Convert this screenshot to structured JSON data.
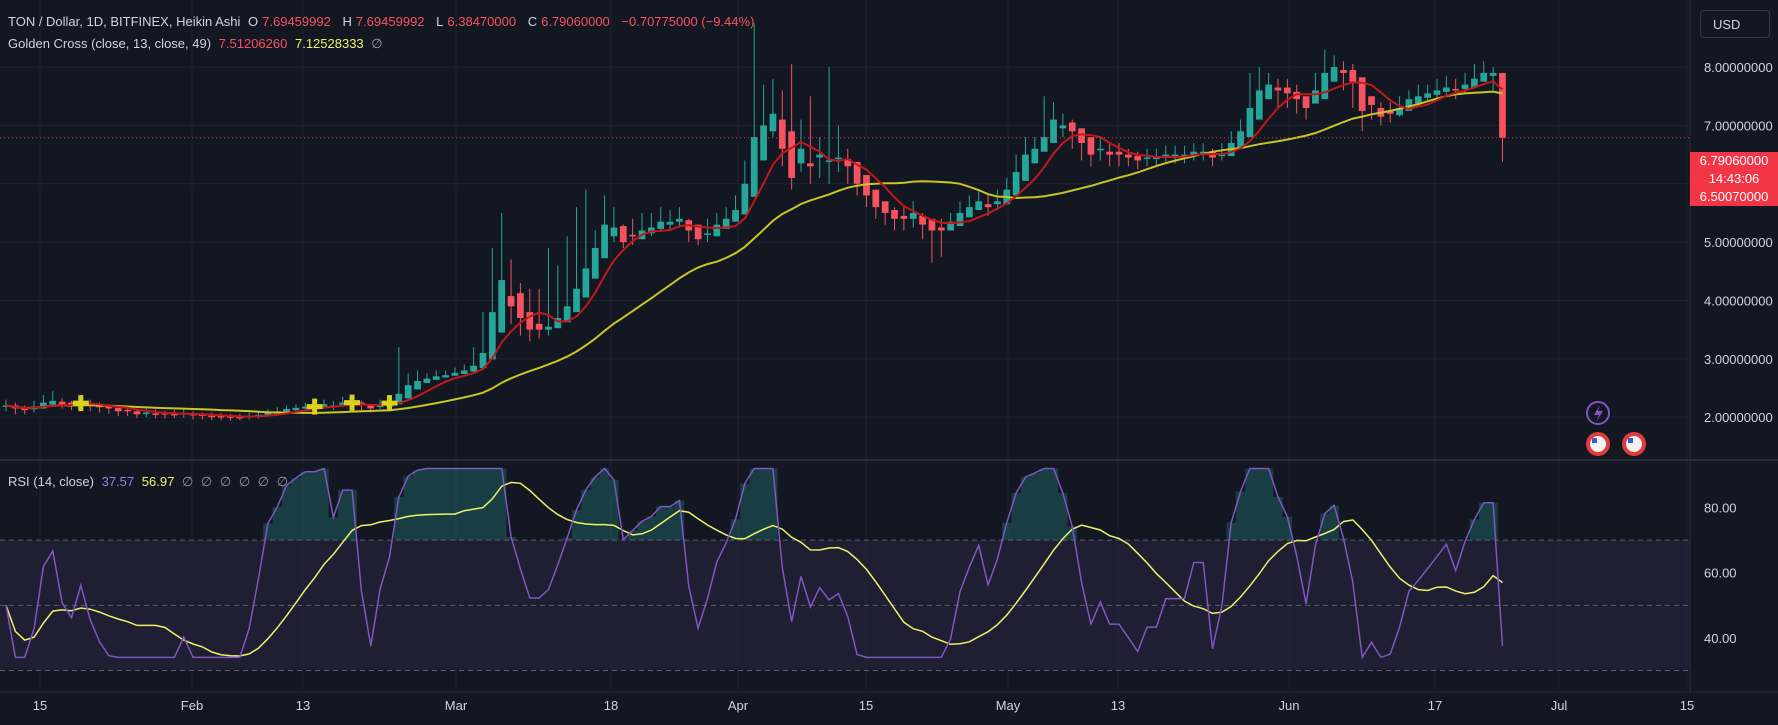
{
  "legend": {
    "symbol": "TON / Dollar, 1D, BITFINEX, Heikin Ashi",
    "o_label": "O",
    "o_value": "7.69459992",
    "h_label": "H",
    "h_value": "7.69459992",
    "l_label": "L",
    "l_value": "6.38470000",
    "c_label": "C",
    "c_value": "6.79060000",
    "change": "−0.70775000 (−9.44%)",
    "indicator": "Golden Cross (close, 13, close, 49)",
    "fast_value": "7.51206260",
    "slow_value": "7.12528333",
    "hidden_glyph": "∅",
    "rsi_label": "RSI (14, close)",
    "rsi_value": "37.57",
    "rsi_ma_value": "56.97",
    "rsi_hidden": [
      "∅",
      "∅",
      "∅",
      "∅",
      "∅",
      "∅"
    ]
  },
  "currency": "USD",
  "price_tag": {
    "current": "6.79060000",
    "countdown": "14:43:06",
    "low": "6.50070000"
  },
  "colors": {
    "background": "#131722",
    "up": "#26a69a",
    "down": "#f7525f",
    "fast_ma": "#c2181b",
    "slow_ma": "#c8c626",
    "rsi": "#7e57c2",
    "rsi_ma": "#f0f06a",
    "rsi_band": "#2a2440",
    "price_tag": "#f23645"
  },
  "chart_data": [
    {
      "type": "candlestick",
      "title": "TON / Dollar, 1D, BITFINEX, Heikin Ashi",
      "x_ticks": [
        "15",
        "Feb",
        "13",
        "Mar",
        "18",
        "Apr",
        "15",
        "May",
        "13",
        "Jun",
        "17",
        "Jul",
        "15"
      ],
      "y_ticks": [
        "2.00000000",
        "3.00000000",
        "4.00000000",
        "5.00000000",
        "6.00000000",
        "7.00000000",
        "8.00000000"
      ],
      "ylim": [
        1.3,
        9.15
      ],
      "log_scale": false,
      "grid": true,
      "closes": [
        2.2,
        2.15,
        2.12,
        2.18,
        2.25,
        2.28,
        2.22,
        2.2,
        2.24,
        2.2,
        2.17,
        2.15,
        2.1,
        2.1,
        2.05,
        2.08,
        2.06,
        2.05,
        2.05,
        2.07,
        2.03,
        2.02,
        2.02,
        2.01,
        2.0,
        2.0,
        2.02,
        2.04,
        2.08,
        2.1,
        2.14,
        2.16,
        2.18,
        2.18,
        2.22,
        2.2,
        2.25,
        2.25,
        2.2,
        2.15,
        2.2,
        2.24,
        2.4,
        2.55,
        2.62,
        2.66,
        2.7,
        2.72,
        2.76,
        2.8,
        2.88,
        3.1,
        3.8,
        4.35,
        3.9,
        3.7,
        3.5,
        3.5,
        3.55,
        3.7,
        3.9,
        4.2,
        4.55,
        4.9,
        5.3,
        5.25,
        5.0,
        5.1,
        5.2,
        5.25,
        5.35,
        5.35,
        5.4,
        5.2,
        5.05,
        5.15,
        5.3,
        5.4,
        5.55,
        6.0,
        6.8,
        7.0,
        7.2,
        6.6,
        6.1,
        6.6,
        6.3,
        6.5,
        6.4,
        6.45,
        6.3,
        6.0,
        5.8,
        5.6,
        5.5,
        5.4,
        5.4,
        5.5,
        5.3,
        5.2,
        5.2,
        5.35,
        5.5,
        5.6,
        5.7,
        5.6,
        5.7,
        5.9,
        6.2,
        6.5,
        6.6,
        6.8,
        7.1,
        7.0,
        6.9,
        6.7,
        6.5,
        6.6,
        6.5,
        6.5,
        6.45,
        6.4,
        6.45,
        6.45,
        6.5,
        6.5,
        6.5,
        6.55,
        6.55,
        6.45,
        6.5,
        6.7,
        6.9,
        7.3,
        7.6,
        7.7,
        7.6,
        7.55,
        7.45,
        7.3,
        7.6,
        7.9,
        8.0,
        7.9,
        7.75,
        7.25,
        7.35,
        7.15,
        7.2,
        7.3,
        7.45,
        7.5,
        7.55,
        7.6,
        7.65,
        7.6,
        7.7,
        7.8,
        7.9,
        7.9,
        6.79
      ],
      "lows": [
        2.1,
        2.05,
        2.05,
        2.08,
        2.14,
        2.18,
        2.15,
        2.12,
        2.15,
        2.1,
        2.08,
        2.06,
        2.02,
        2.02,
        1.98,
        2.0,
        1.98,
        1.98,
        1.98,
        1.99,
        1.96,
        1.96,
        1.95,
        1.95,
        1.94,
        1.95,
        1.96,
        1.98,
        2.01,
        2.03,
        2.07,
        2.1,
        2.11,
        2.12,
        2.14,
        2.12,
        2.17,
        2.18,
        2.12,
        2.08,
        2.14,
        2.16,
        2.3,
        2.5,
        2.58,
        2.62,
        2.65,
        2.68,
        2.71,
        2.75,
        2.82,
        2.95,
        3.5,
        3.9,
        3.6,
        3.4,
        3.3,
        3.35,
        3.4,
        3.6,
        3.75,
        4.0,
        4.4,
        4.7,
        5.05,
        5.0,
        4.9,
        4.95,
        5.05,
        5.1,
        5.2,
        5.2,
        5.25,
        5.0,
        4.95,
        5.0,
        5.2,
        5.3,
        5.4,
        5.7,
        6.4,
        6.6,
        6.8,
        6.3,
        5.9,
        6.2,
        6.0,
        6.1,
        6.0,
        6.2,
        6.0,
        5.8,
        5.6,
        5.4,
        5.3,
        5.2,
        5.2,
        5.25,
        5.05,
        4.65,
        4.75,
        5.2,
        5.35,
        5.45,
        5.55,
        5.45,
        5.55,
        5.7,
        5.9,
        6.3,
        6.4,
        6.6,
        6.9,
        6.8,
        6.6,
        6.4,
        6.3,
        6.4,
        6.3,
        6.3,
        6.3,
        6.25,
        6.3,
        6.3,
        6.35,
        6.35,
        6.35,
        6.4,
        6.4,
        6.3,
        6.4,
        6.5,
        6.7,
        7.1,
        7.35,
        7.45,
        7.3,
        7.3,
        7.2,
        7.1,
        7.4,
        7.7,
        7.8,
        7.6,
        7.3,
        6.9,
        7.1,
        7.0,
        7.05,
        7.15,
        7.3,
        7.35,
        7.4,
        7.45,
        7.5,
        7.45,
        7.55,
        7.65,
        7.75,
        7.6,
        6.38
      ],
      "highs": [
        2.3,
        2.25,
        2.2,
        2.28,
        2.38,
        2.45,
        2.32,
        2.28,
        2.33,
        2.3,
        2.25,
        2.22,
        2.18,
        2.17,
        2.12,
        2.15,
        2.13,
        2.11,
        2.12,
        2.14,
        2.1,
        2.08,
        2.08,
        2.07,
        2.06,
        2.06,
        2.08,
        2.1,
        2.14,
        2.17,
        2.2,
        2.22,
        2.25,
        2.25,
        2.3,
        2.28,
        2.35,
        2.32,
        2.28,
        2.22,
        2.3,
        2.32,
        3.2,
        2.75,
        2.8,
        2.75,
        2.8,
        2.8,
        2.85,
        2.9,
        3.2,
        3.8,
        4.9,
        5.5,
        4.7,
        4.3,
        4.2,
        4.2,
        4.9,
        4.6,
        5.1,
        5.6,
        5.9,
        5.2,
        5.8,
        5.6,
        5.3,
        5.4,
        5.5,
        5.5,
        5.6,
        5.55,
        5.6,
        5.4,
        5.2,
        5.4,
        5.5,
        5.6,
        5.8,
        6.4,
        8.75,
        7.7,
        7.8,
        7.6,
        8.05,
        7.1,
        7.5,
        6.8,
        8.0,
        7.0,
        6.6,
        6.2,
        6.0,
        5.8,
        5.7,
        5.6,
        5.6,
        5.7,
        5.5,
        5.4,
        5.4,
        5.5,
        5.7,
        5.8,
        5.9,
        5.8,
        5.9,
        6.1,
        6.5,
        6.8,
        6.8,
        7.5,
        7.4,
        7.2,
        7.1,
        6.9,
        6.7,
        6.8,
        6.7,
        6.7,
        6.6,
        6.55,
        6.6,
        6.6,
        6.65,
        6.65,
        6.65,
        6.7,
        6.7,
        6.6,
        6.7,
        6.9,
        7.1,
        7.9,
        8.0,
        7.9,
        7.8,
        7.8,
        7.7,
        7.5,
        7.9,
        8.3,
        8.2,
        8.1,
        8.05,
        7.6,
        7.5,
        7.4,
        7.4,
        7.5,
        7.6,
        7.7,
        7.7,
        7.8,
        7.85,
        7.8,
        7.9,
        8.05,
        8.1,
        8.0,
        7.69
      ]
    },
    {
      "type": "line",
      "title": "RSI (14, close)",
      "series_names": [
        "RSI",
        "RSI-based MA"
      ],
      "y_ticks": [
        "40.00",
        "60.00",
        "80.00"
      ],
      "ylim": [
        24,
        94
      ],
      "bands": [
        30,
        50,
        70
      ],
      "last_values": [
        37.57,
        56.97
      ]
    }
  ]
}
